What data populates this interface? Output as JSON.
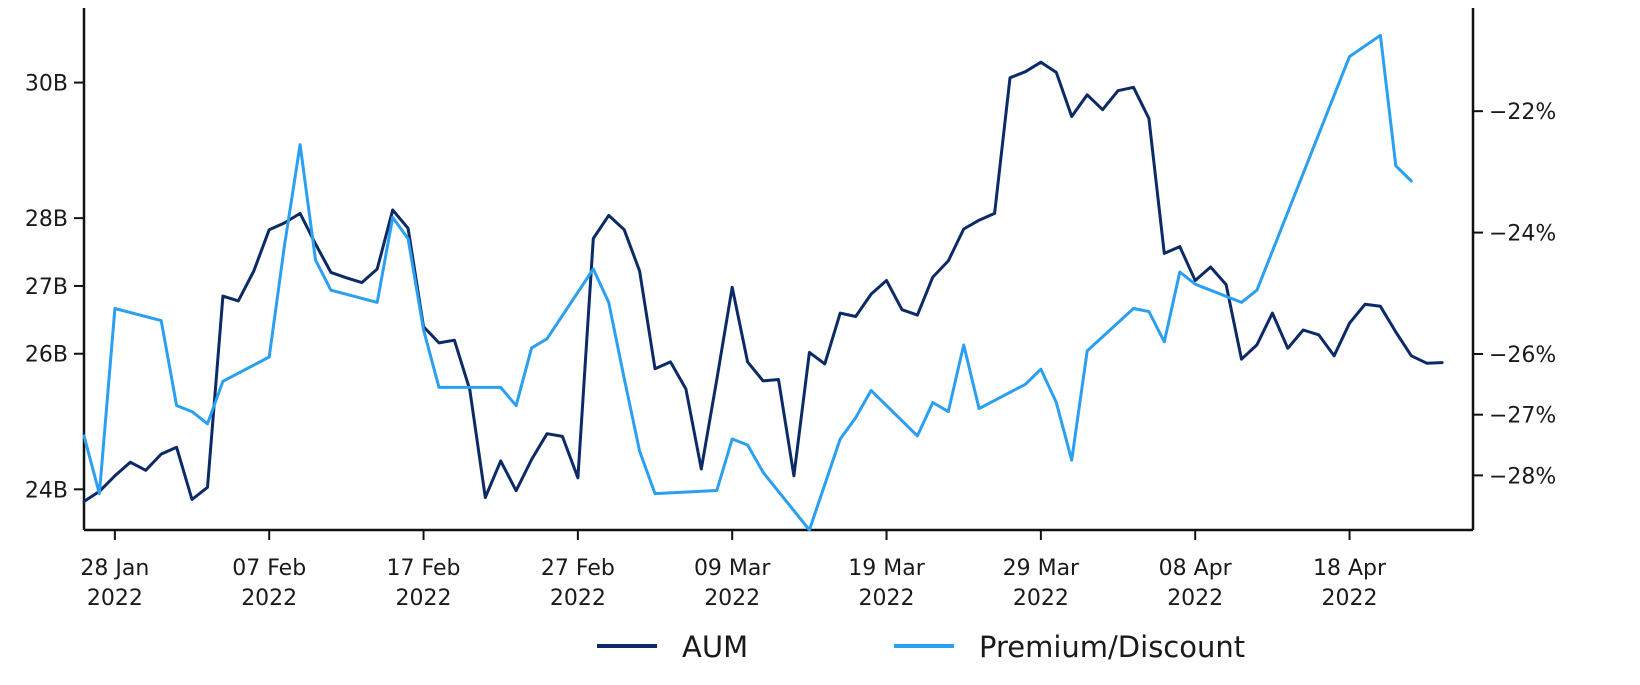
{
  "chart_data": {
    "type": "line",
    "title": "",
    "xlabel": "",
    "ylabel_left": "",
    "ylabel_right": "",
    "grid": false,
    "legend_position": "bottom-center",
    "x_ticks": [
      {
        "date": "2022-01-28",
        "line1": "28 Jan",
        "line2": "2022"
      },
      {
        "date": "2022-02-07",
        "line1": "07 Feb",
        "line2": "2022"
      },
      {
        "date": "2022-02-17",
        "line1": "17 Feb",
        "line2": "2022"
      },
      {
        "date": "2022-02-27",
        "line1": "27 Feb",
        "line2": "2022"
      },
      {
        "date": "2022-03-09",
        "line1": "09 Mar",
        "line2": "2022"
      },
      {
        "date": "2022-03-19",
        "line1": "19 Mar",
        "line2": "2022"
      },
      {
        "date": "2022-03-29",
        "line1": "29 Mar",
        "line2": "2022"
      },
      {
        "date": "2022-04-08",
        "line1": "08 Apr",
        "line2": "2022"
      },
      {
        "date": "2022-04-18",
        "line1": "18 Apr",
        "line2": "2022"
      }
    ],
    "xlim": [
      "2022-01-26",
      "2022-04-26"
    ],
    "y_left": {
      "ylim": [
        23.4,
        31.1
      ],
      "ticks": [
        {
          "value": 24,
          "label": "24B"
        },
        {
          "value": 26,
          "label": "26B"
        },
        {
          "value": 27,
          "label": "27B"
        },
        {
          "value": 28,
          "label": "28B"
        },
        {
          "value": 30,
          "label": "30B"
        }
      ]
    },
    "y_right": {
      "ylim": [
        -28.9,
        -20.3
      ],
      "ticks": [
        {
          "value": -28,
          "label": "−28%"
        },
        {
          "value": -27,
          "label": "−27%"
        },
        {
          "value": -26,
          "label": "−26%"
        },
        {
          "value": -24,
          "label": "−24%"
        },
        {
          "value": -22,
          "label": "−22%"
        }
      ]
    },
    "series": [
      {
        "name": "AUM",
        "axis": "left",
        "color": "#0b2a66",
        "points": [
          [
            "2022-01-26",
            23.82
          ],
          [
            "2022-01-27",
            23.97
          ],
          [
            "2022-01-28",
            24.2
          ],
          [
            "2022-01-29",
            24.4
          ],
          [
            "2022-01-30",
            24.28
          ],
          [
            "2022-01-31",
            24.52
          ],
          [
            "2022-02-01",
            24.62
          ],
          [
            "2022-02-02",
            23.85
          ],
          [
            "2022-02-03",
            24.03
          ],
          [
            "2022-02-04",
            26.85
          ],
          [
            "2022-02-05",
            26.78
          ],
          [
            "2022-02-06",
            27.22
          ],
          [
            "2022-02-07",
            27.83
          ],
          [
            "2022-02-08",
            27.93
          ],
          [
            "2022-02-09",
            28.07
          ],
          [
            "2022-02-10",
            27.62
          ],
          [
            "2022-02-11",
            27.2
          ],
          [
            "2022-02-12",
            27.12
          ],
          [
            "2022-02-13",
            27.05
          ],
          [
            "2022-02-14",
            27.25
          ],
          [
            "2022-02-15",
            28.12
          ],
          [
            "2022-02-16",
            27.85
          ],
          [
            "2022-02-17",
            26.4
          ],
          [
            "2022-02-18",
            26.16
          ],
          [
            "2022-02-19",
            26.2
          ],
          [
            "2022-02-20",
            25.47
          ],
          [
            "2022-02-21",
            23.88
          ],
          [
            "2022-02-22",
            24.42
          ],
          [
            "2022-02-23",
            23.98
          ],
          [
            "2022-02-24",
            24.44
          ],
          [
            "2022-02-25",
            24.82
          ],
          [
            "2022-02-26",
            24.78
          ],
          [
            "2022-02-27",
            24.17
          ],
          [
            "2022-02-28",
            27.7
          ],
          [
            "2022-03-01",
            28.04
          ],
          [
            "2022-03-02",
            27.83
          ],
          [
            "2022-03-03",
            27.22
          ],
          [
            "2022-03-04",
            25.78
          ],
          [
            "2022-03-05",
            25.88
          ],
          [
            "2022-03-06",
            25.48
          ],
          [
            "2022-03-07",
            24.3
          ],
          [
            "2022-03-08",
            25.62
          ],
          [
            "2022-03-09",
            26.98
          ],
          [
            "2022-03-10",
            25.88
          ],
          [
            "2022-03-11",
            25.6
          ],
          [
            "2022-03-12",
            25.62
          ],
          [
            "2022-03-13",
            24.2
          ],
          [
            "2022-03-14",
            26.02
          ],
          [
            "2022-03-15",
            25.85
          ],
          [
            "2022-03-16",
            26.6
          ],
          [
            "2022-03-17",
            26.55
          ],
          [
            "2022-03-18",
            26.88
          ],
          [
            "2022-03-19",
            27.08
          ],
          [
            "2022-03-20",
            26.65
          ],
          [
            "2022-03-21",
            26.57
          ],
          [
            "2022-03-22",
            27.13
          ],
          [
            "2022-03-23",
            27.37
          ],
          [
            "2022-03-24",
            27.84
          ],
          [
            "2022-03-25",
            27.97
          ],
          [
            "2022-03-26",
            28.07
          ],
          [
            "2022-03-27",
            30.07
          ],
          [
            "2022-03-28",
            30.16
          ],
          [
            "2022-03-29",
            30.3
          ],
          [
            "2022-03-30",
            30.15
          ],
          [
            "2022-03-31",
            29.5
          ],
          [
            "2022-04-01",
            29.82
          ],
          [
            "2022-04-02",
            29.6
          ],
          [
            "2022-04-03",
            29.88
          ],
          [
            "2022-04-04",
            29.93
          ],
          [
            "2022-04-05",
            29.47
          ],
          [
            "2022-04-06",
            27.48
          ],
          [
            "2022-04-07",
            27.58
          ],
          [
            "2022-04-08",
            27.08
          ],
          [
            "2022-04-09",
            27.28
          ],
          [
            "2022-04-10",
            27.02
          ],
          [
            "2022-04-11",
            25.92
          ],
          [
            "2022-04-12",
            26.13
          ],
          [
            "2022-04-13",
            26.6
          ],
          [
            "2022-04-14",
            26.08
          ],
          [
            "2022-04-15",
            26.35
          ],
          [
            "2022-04-16",
            26.28
          ],
          [
            "2022-04-17",
            25.97
          ],
          [
            "2022-04-18",
            26.45
          ],
          [
            "2022-04-19",
            26.73
          ],
          [
            "2022-04-20",
            26.7
          ],
          [
            "2022-04-21",
            26.32
          ],
          [
            "2022-04-22",
            25.97
          ],
          [
            "2022-04-23",
            25.86
          ],
          [
            "2022-04-24",
            25.87
          ]
        ]
      },
      {
        "name": "Premium/Discount",
        "axis": "right",
        "color": "#2b9ff0",
        "points": [
          [
            "2022-01-26",
            -27.35
          ],
          [
            "2022-01-27",
            -28.3
          ],
          [
            "2022-01-28",
            -25.25
          ],
          [
            "2022-01-31",
            -25.45
          ],
          [
            "2022-02-01",
            -26.85
          ],
          [
            "2022-02-02",
            -26.95
          ],
          [
            "2022-02-03",
            -27.15
          ],
          [
            "2022-02-04",
            -26.45
          ],
          [
            "2022-02-07",
            -26.05
          ],
          [
            "2022-02-08",
            -24.2
          ],
          [
            "2022-02-09",
            -22.55
          ],
          [
            "2022-02-10",
            -24.45
          ],
          [
            "2022-02-11",
            -24.95
          ],
          [
            "2022-02-14",
            -25.15
          ],
          [
            "2022-02-15",
            -23.75
          ],
          [
            "2022-02-16",
            -24.1
          ],
          [
            "2022-02-17",
            -25.6
          ],
          [
            "2022-02-18",
            -26.55
          ],
          [
            "2022-02-22",
            -26.55
          ],
          [
            "2022-02-23",
            -26.85
          ],
          [
            "2022-02-24",
            -25.9
          ],
          [
            "2022-02-25",
            -25.75
          ],
          [
            "2022-02-28",
            -24.6
          ],
          [
            "2022-03-01",
            -25.15
          ],
          [
            "2022-03-02",
            -26.4
          ],
          [
            "2022-03-03",
            -27.6
          ],
          [
            "2022-03-04",
            -28.3
          ],
          [
            "2022-03-08",
            -28.25
          ],
          [
            "2022-03-09",
            -27.4
          ],
          [
            "2022-03-10",
            -27.5
          ],
          [
            "2022-03-11",
            -27.95
          ],
          [
            "2022-03-14",
            -28.9
          ],
          [
            "2022-03-15",
            -28.15
          ],
          [
            "2022-03-16",
            -27.4
          ],
          [
            "2022-03-17",
            -27.05
          ],
          [
            "2022-03-18",
            -26.6
          ],
          [
            "2022-03-21",
            -27.35
          ],
          [
            "2022-03-22",
            -26.8
          ],
          [
            "2022-03-23",
            -26.95
          ],
          [
            "2022-03-24",
            -25.85
          ],
          [
            "2022-03-25",
            -26.9
          ],
          [
            "2022-03-28",
            -26.5
          ],
          [
            "2022-03-29",
            -26.25
          ],
          [
            "2022-03-30",
            -26.8
          ],
          [
            "2022-03-31",
            -27.75
          ],
          [
            "2022-04-01",
            -25.95
          ],
          [
            "2022-04-04",
            -25.25
          ],
          [
            "2022-04-05",
            -25.3
          ],
          [
            "2022-04-06",
            -25.8
          ],
          [
            "2022-04-07",
            -24.65
          ],
          [
            "2022-04-08",
            -24.85
          ],
          [
            "2022-04-11",
            -25.15
          ],
          [
            "2022-04-12",
            -24.95
          ],
          [
            "2022-04-18",
            -21.1
          ],
          [
            "2022-04-20",
            -20.75
          ],
          [
            "2022-04-21",
            -22.9
          ],
          [
            "2022-04-22",
            -23.15
          ]
        ]
      }
    ]
  }
}
